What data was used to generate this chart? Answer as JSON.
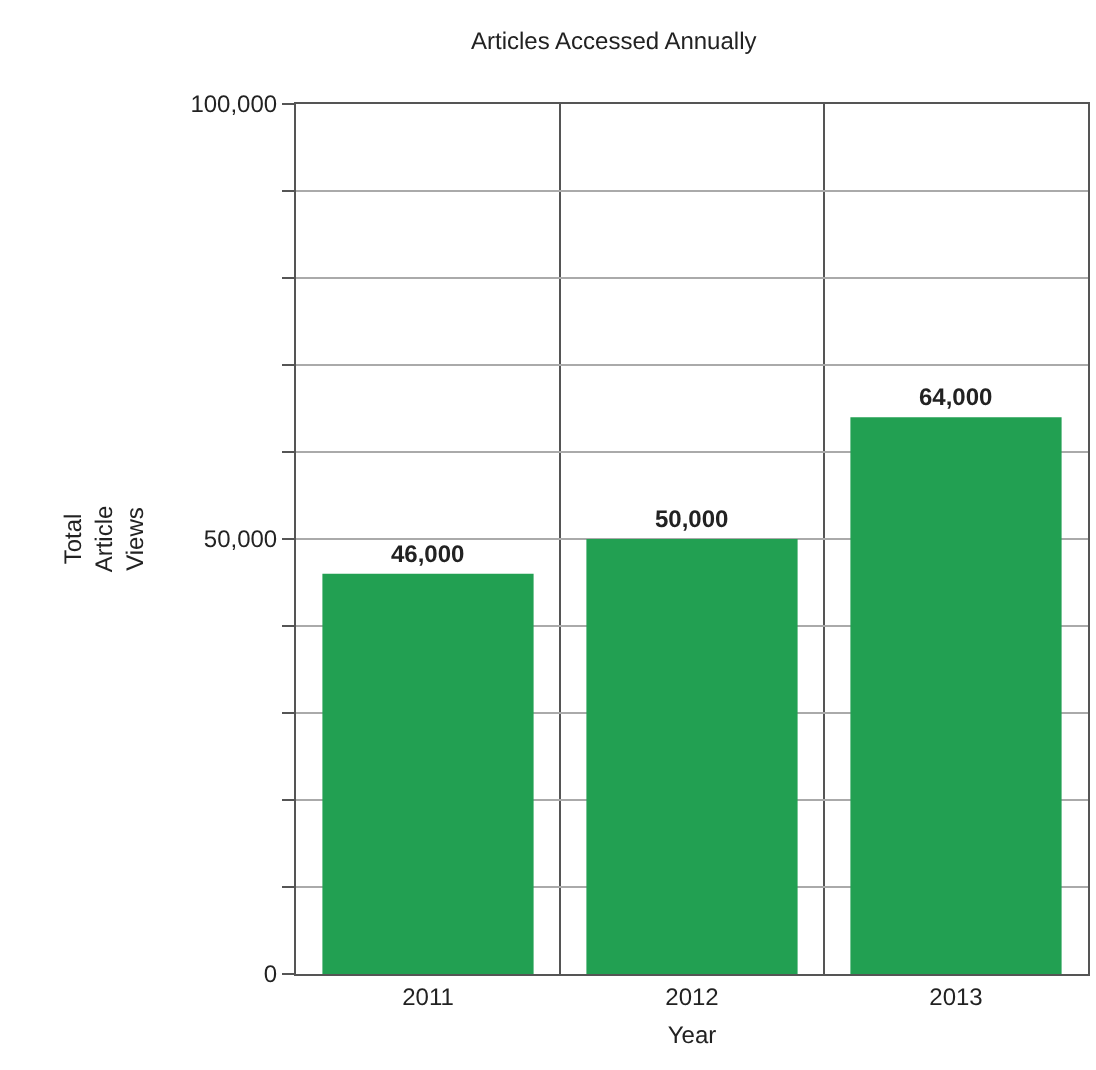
{
  "chart_data": {
    "type": "bar",
    "title": "Articles Accessed Annually",
    "xlabel": "Year",
    "ylabel": "Total Article Views",
    "categories": [
      "2011",
      "2012",
      "2013"
    ],
    "values": [
      46000,
      50000,
      64000
    ],
    "color": "#22a052",
    "value_labels": [
      "46,000",
      "50,000",
      "64,000"
    ],
    "ylim": [
      0,
      100000
    ],
    "yticks": [
      {
        "value": 0,
        "label": "0"
      },
      {
        "value": 10000,
        "label": null
      },
      {
        "value": 20000,
        "label": null
      },
      {
        "value": 30000,
        "label": null
      },
      {
        "value": 40000,
        "label": null
      },
      {
        "value": 50000,
        "label": "50,000"
      },
      {
        "value": 60000,
        "label": null
      },
      {
        "value": 70000,
        "label": null
      },
      {
        "value": 80000,
        "label": null
      },
      {
        "value": 90000,
        "label": null
      },
      {
        "value": 100000,
        "label": "100,000"
      }
    ],
    "grid": true
  }
}
